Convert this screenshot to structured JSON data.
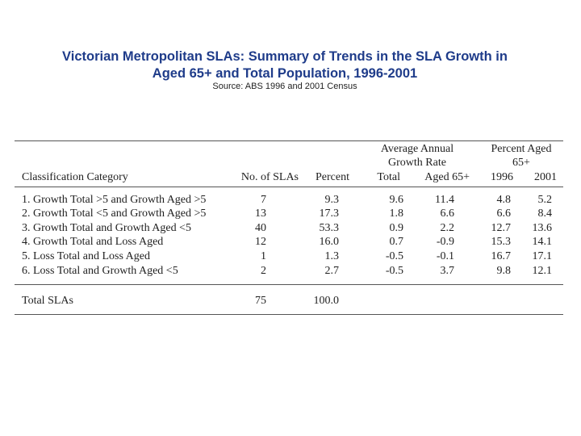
{
  "title_line1": "Victorian Metropolitan SLAs: Summary of Trends in the SLA Growth in",
  "title_line2": "Aged 65+ and Total Population, 1996-2001",
  "source": "Source: ABS 1996 and 2001 Census",
  "table": {
    "group_headers": {
      "growth_line1": "Average Annual",
      "growth_line2": "Growth Rate",
      "percent_line1": "Percent Aged",
      "percent_line2": "65+"
    },
    "columns": [
      "Classification Category",
      "No. of SLAs",
      "Percent",
      "Total",
      "Aged 65+",
      "1996",
      "2001"
    ],
    "rows": [
      {
        "category": "1. Growth Total >5 and Growth Aged >5",
        "slas": "7",
        "percent": "9.3",
        "total": "9.6",
        "aged": "11.4",
        "y1996": "4.8",
        "y2001": "5.2"
      },
      {
        "category": "2. Growth Total <5 and Growth Aged >5",
        "slas": "13",
        "percent": "17.3",
        "total": "1.8",
        "aged": "6.6",
        "y1996": "6.6",
        "y2001": "8.4"
      },
      {
        "category": "3. Growth Total and Growth Aged <5",
        "slas": "40",
        "percent": "53.3",
        "total": "0.9",
        "aged": "2.2",
        "y1996": "12.7",
        "y2001": "13.6"
      },
      {
        "category": "4. Growth Total and Loss Aged",
        "slas": "12",
        "percent": "16.0",
        "total": "0.7",
        "aged": "-0.9",
        "y1996": "15.3",
        "y2001": "14.1"
      },
      {
        "category": "5. Loss Total and Loss Aged",
        "slas": "1",
        "percent": "1.3",
        "total": "-0.5",
        "aged": "-0.1",
        "y1996": "16.7",
        "y2001": "17.1"
      },
      {
        "category": "6. Loss Total and Growth Aged <5",
        "slas": "2",
        "percent": "2.7",
        "total": "-0.5",
        "aged": "3.7",
        "y1996": "9.8",
        "y2001": "12.1"
      }
    ],
    "total_row": {
      "category": "Total SLAs",
      "slas": "75",
      "percent": "100.0"
    }
  }
}
